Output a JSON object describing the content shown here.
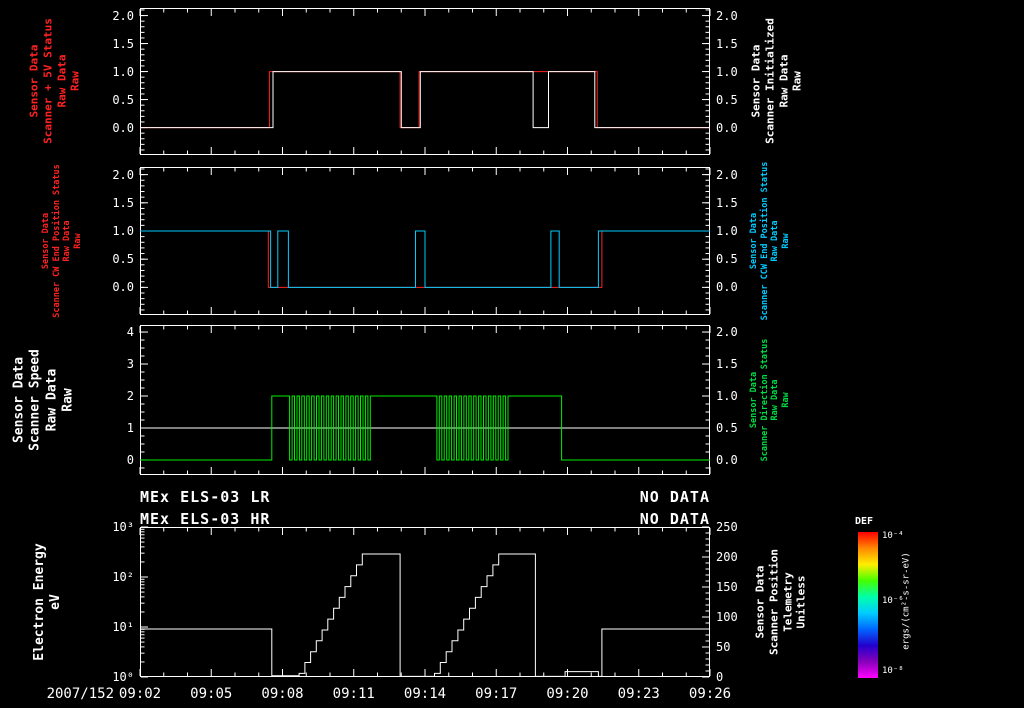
{
  "figure": {
    "date_label": "2007/152",
    "x_tick_labels": [
      "09:02",
      "09:05",
      "09:08",
      "09:11",
      "09:14",
      "09:17",
      "09:20",
      "09:23",
      "09:26"
    ],
    "x_unit": "minutes after 09:02",
    "background": "#000000"
  },
  "status_lines": {
    "lr_label": "MEx ELS-03 LR",
    "lr_value": "NO DATA",
    "hr_label": "MEx ELS-03 HR",
    "hr_value": "NO DATA"
  },
  "colorbar": {
    "title": "DEF",
    "tick_labels": [
      "10⁻⁴",
      "10⁻⁶",
      "10⁻⁸"
    ],
    "units_label": "ergs/(cm²-s-sr-eV)",
    "gradient": [
      "#ff0000",
      "#ff8800",
      "#ffee00",
      "#44ff00",
      "#00ffaa",
      "#00ccff",
      "#0066ff",
      "#2200cc",
      "#8800bb",
      "#ff00ff"
    ]
  },
  "chart_data": [
    {
      "type": "line",
      "panel": "scanner-5v-and-initialized",
      "x_range": [
        "09:02",
        "09:26"
      ],
      "span_minutes": 24,
      "ylim": [
        0,
        2
      ],
      "left_ticks": {
        "values": [
          2.0,
          1.5,
          1.0,
          0.5,
          0.0
        ],
        "labels": [
          "2.0",
          "1.5",
          "1.0",
          "0.5",
          "0.0"
        ]
      },
      "right_ticks": {
        "values": [
          2.0,
          1.5,
          1.0,
          0.5,
          0.0
        ],
        "labels": [
          "2.0",
          "1.5",
          "1.0",
          "0.5",
          "0.0"
        ]
      },
      "left_title": {
        "lines": [
          "Sensor Data",
          "Scanner + 5V Status",
          "Raw Data",
          "Raw"
        ],
        "color": "#ff2222"
      },
      "right_title": {
        "lines": [
          "Sensor Data",
          "Scanner Initialized",
          "Raw Data",
          "Raw"
        ],
        "color": "#ffffff"
      },
      "series": [
        {
          "name": "Scanner + 5V Status Raw",
          "color": "#ff2222",
          "axis": "left",
          "steps": [
            [
              0,
              0
            ],
            [
              5.45,
              0
            ],
            [
              5.45,
              1
            ],
            [
              10.95,
              1
            ],
            [
              10.95,
              0
            ],
            [
              11.75,
              0
            ],
            [
              11.75,
              1
            ],
            [
              19.25,
              1
            ],
            [
              19.25,
              0
            ],
            [
              24,
              0
            ]
          ]
        },
        {
          "name": "Scanner Initialized Raw",
          "color": "#ffffff",
          "axis": "left",
          "steps": [
            [
              0,
              0
            ],
            [
              5.6,
              0
            ],
            [
              5.6,
              1
            ],
            [
              11.0,
              1
            ],
            [
              11.0,
              0
            ],
            [
              11.8,
              0
            ],
            [
              11.8,
              1
            ],
            [
              16.55,
              1
            ],
            [
              16.55,
              0
            ],
            [
              17.2,
              0
            ],
            [
              17.2,
              1
            ],
            [
              19.15,
              1
            ],
            [
              19.15,
              0
            ],
            [
              24,
              0
            ]
          ]
        }
      ]
    },
    {
      "type": "line",
      "panel": "scanner-end-position-status",
      "x_range": [
        "09:02",
        "09:26"
      ],
      "span_minutes": 24,
      "ylim": [
        0,
        2
      ],
      "left_ticks": {
        "values": [
          2.0,
          1.5,
          1.0,
          0.5,
          0.0
        ],
        "labels": [
          "2.0",
          "1.5",
          "1.0",
          "0.5",
          "0.0"
        ]
      },
      "right_ticks": {
        "values": [
          2.0,
          1.5,
          1.0,
          0.5,
          0.0
        ],
        "labels": [
          "2.0",
          "1.5",
          "1.0",
          "0.5",
          "0.0"
        ]
      },
      "left_title": {
        "lines": [
          "Sensor Data",
          "Scanner CW End Position Status",
          "Raw Data",
          "Raw"
        ],
        "color": "#ff2222"
      },
      "right_title": {
        "lines": [
          "Sensor Data",
          "Scanner CCW End Position Status",
          "Raw Data",
          "Raw"
        ],
        "color": "#00ccff"
      },
      "series": [
        {
          "name": "Scanner CW End Position Status Raw",
          "color": "#ff2222",
          "axis": "left",
          "steps": [
            [
              0,
              1
            ],
            [
              5.4,
              1
            ],
            [
              5.4,
              0
            ],
            [
              19.45,
              0
            ],
            [
              19.45,
              1
            ],
            [
              24,
              1
            ]
          ]
        },
        {
          "name": "Scanner CCW End Position Status Raw",
          "color": "#00ccff",
          "axis": "left",
          "steps": [
            [
              0,
              1
            ],
            [
              5.5,
              1
            ],
            [
              5.5,
              0
            ],
            [
              5.8,
              0
            ],
            [
              5.8,
              1
            ],
            [
              6.25,
              1
            ],
            [
              6.25,
              0
            ],
            [
              11.6,
              0
            ],
            [
              11.6,
              1
            ],
            [
              12.0,
              1
            ],
            [
              12.0,
              0
            ],
            [
              17.3,
              0
            ],
            [
              17.3,
              1
            ],
            [
              17.65,
              1
            ],
            [
              17.65,
              0
            ],
            [
              19.3,
              0
            ],
            [
              19.3,
              1
            ],
            [
              24,
              1
            ]
          ]
        }
      ]
    },
    {
      "type": "line",
      "panel": "scanner-speed-and-direction",
      "x_range": [
        "09:02",
        "09:26"
      ],
      "span_minutes": 24,
      "ylim": [
        0,
        4
      ],
      "ylim_right": [
        0,
        2
      ],
      "left_ticks": {
        "values": [
          4,
          3,
          2,
          1,
          0
        ],
        "labels": [
          "4",
          "3",
          "2",
          "1",
          "0"
        ]
      },
      "right_ticks": {
        "values": [
          2.0,
          1.5,
          1.0,
          0.5,
          0.0
        ],
        "labels": [
          "2.0",
          "1.5",
          "1.0",
          "0.5",
          "0.0"
        ]
      },
      "left_title": {
        "lines": [
          "Sensor Data",
          "Scanner Speed",
          "Raw Data",
          "Raw"
        ],
        "color": "#ffffff"
      },
      "right_title": {
        "lines": [
          "Sensor Data",
          "Scanner Direction Status",
          "Raw Data",
          "Raw"
        ],
        "color": "#00dd44"
      },
      "series": [
        {
          "name": "Scanner Speed Raw",
          "color": "#ffffff",
          "axis": "left",
          "steps": [
            [
              0,
              1
            ],
            [
              24,
              1
            ]
          ]
        },
        {
          "name": "Scanner Direction Status Raw",
          "color": "#00ee00",
          "axis": "right",
          "segments": [
            {
              "t0": 0,
              "t1": 5.55,
              "v": 0
            },
            {
              "t0": 5.55,
              "t1": 6.3,
              "v": 1
            },
            {
              "t0": 6.3,
              "t1": 9.8,
              "osc": {
                "lo": 0,
                "hi": 1,
                "cycles": 17
              }
            },
            {
              "t0": 9.8,
              "t1": 12.5,
              "v": 1
            },
            {
              "t0": 12.5,
              "t1": 15.6,
              "osc": {
                "lo": 0,
                "hi": 1,
                "cycles": 15
              }
            },
            {
              "t0": 15.6,
              "t1": 17.75,
              "v": 1
            },
            {
              "t0": 17.75,
              "t1": 24,
              "v": 0
            }
          ]
        }
      ]
    },
    {
      "type": "line",
      "panel": "electron-energy-and-scanner-position",
      "x_range": [
        "09:02",
        "09:26"
      ],
      "span_minutes": 24,
      "ylim": [
        1,
        1000
      ],
      "left_scale": "log",
      "ylim_right": [
        0,
        250
      ],
      "left_ticks": {
        "values": [
          1000,
          100,
          10,
          1
        ],
        "labels": [
          "10³",
          "10²",
          "10¹",
          "10⁰"
        ]
      },
      "right_ticks": {
        "values": [
          250,
          200,
          150,
          100,
          50,
          0
        ],
        "labels": [
          "250",
          "200",
          "150",
          "100",
          "50",
          "0"
        ]
      },
      "left_title": {
        "lines": [
          "Electron Energy",
          "eV"
        ],
        "color": "#ffffff"
      },
      "right_title": {
        "lines": [
          "Sensor Data",
          "Scanner Position",
          "Telemetry",
          "Unitless"
        ],
        "color": "#ffffff"
      },
      "series": [
        {
          "name": "Scanner Position Telemetry",
          "color": "#ffffff",
          "axis": "right",
          "segments": [
            {
              "t0": 0,
              "t1": 5.55,
              "v": 80
            },
            {
              "t0": 5.55,
              "t1": 6.7,
              "v": 2
            },
            {
              "t0": 6.7,
              "t1": 9.6,
              "stair": {
                "from": 6,
                "to": 205,
                "steps": 12
              }
            },
            {
              "t0": 9.6,
              "t1": 10.95,
              "v": 205
            },
            {
              "t0": 10.95,
              "t1": 12.4,
              "v": 1
            },
            {
              "t0": 12.4,
              "t1": 15.35,
              "stair": {
                "from": 6,
                "to": 205,
                "steps": 12
              }
            },
            {
              "t0": 15.35,
              "t1": 16.65,
              "v": 205
            },
            {
              "t0": 16.65,
              "t1": 17.9,
              "v": 1
            },
            {
              "t0": 17.9,
              "t1": 19.3,
              "v": 9
            },
            {
              "t0": 19.3,
              "t1": 19.45,
              "v": 1
            },
            {
              "t0": 19.45,
              "t1": 24,
              "v": 80
            }
          ]
        }
      ]
    }
  ]
}
